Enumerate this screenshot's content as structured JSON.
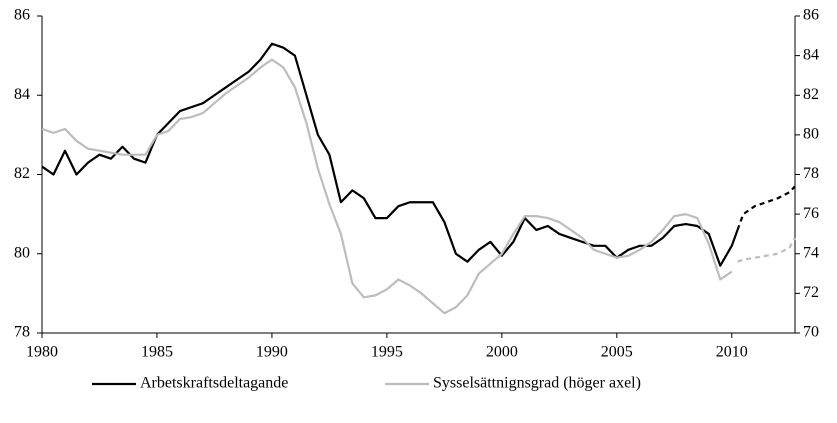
{
  "chart_data": {
    "type": "line",
    "x": [
      1980,
      1980.5,
      1981,
      1981.5,
      1982,
      1982.5,
      1983,
      1983.5,
      1984,
      1984.5,
      1985,
      1985.5,
      1986,
      1986.5,
      1987,
      1987.5,
      1988,
      1988.5,
      1989,
      1989.5,
      1990,
      1990.5,
      1991,
      1991.5,
      1992,
      1992.5,
      1993,
      1993.5,
      1994,
      1994.5,
      1995,
      1995.5,
      1996,
      1996.5,
      1997,
      1997.5,
      1998,
      1998.5,
      1999,
      1999.5,
      2000,
      2000.5,
      2001,
      2001.5,
      2002,
      2002.5,
      2003,
      2003.5,
      2004,
      2004.5,
      2005,
      2005.5,
      2006,
      2006.5,
      2007,
      2007.5,
      2008,
      2008.5,
      2009,
      2009.5,
      2010,
      2010.25,
      2010.5,
      2011,
      2011.5,
      2012,
      2012.5,
      2012.75
    ],
    "series": [
      {
        "name": "Arbetskraftsdeltagande",
        "color": "#000000",
        "axis": "y",
        "values": [
          82.2,
          82.0,
          82.6,
          82.0,
          82.3,
          82.5,
          82.4,
          82.7,
          82.4,
          82.3,
          83.0,
          83.3,
          83.6,
          83.7,
          83.8,
          84.0,
          84.2,
          84.4,
          84.6,
          84.9,
          85.3,
          85.2,
          85.0,
          84.0,
          83.0,
          82.5,
          81.3,
          81.6,
          81.4,
          80.9,
          80.9,
          81.2,
          81.3,
          81.3,
          81.3,
          80.8,
          80.0,
          79.8,
          80.1,
          80.3,
          79.95,
          80.3,
          80.9,
          80.6,
          80.7,
          80.5,
          80.4,
          80.3,
          80.2,
          80.2,
          79.9,
          80.1,
          80.2,
          80.2,
          80.4,
          80.7,
          80.75,
          80.7,
          80.5,
          79.7,
          80.2,
          80.6,
          null,
          null,
          null,
          null,
          null,
          null
        ],
        "forecast_values": [
          null,
          null,
          null,
          null,
          null,
          null,
          null,
          null,
          null,
          null,
          null,
          null,
          null,
          null,
          null,
          null,
          null,
          null,
          null,
          null,
          null,
          null,
          null,
          null,
          null,
          null,
          null,
          null,
          null,
          null,
          null,
          null,
          null,
          null,
          null,
          null,
          null,
          null,
          null,
          null,
          null,
          null,
          null,
          null,
          null,
          null,
          null,
          null,
          null,
          null,
          null,
          null,
          null,
          null,
          null,
          null,
          null,
          null,
          null,
          null,
          null,
          80.6,
          81.0,
          81.2,
          81.3,
          81.4,
          81.55,
          81.7
        ]
      },
      {
        "name": "Sysselsättnignsgrad (höger axel)",
        "color": "#bdbdbd",
        "axis": "y2",
        "values": [
          80.3,
          80.1,
          80.3,
          79.7,
          79.3,
          79.2,
          79.1,
          79.0,
          79.0,
          79.0,
          80.0,
          80.2,
          80.8,
          80.9,
          81.1,
          81.6,
          82.1,
          82.5,
          82.9,
          83.4,
          83.8,
          83.4,
          82.4,
          80.6,
          78.3,
          76.5,
          75.0,
          72.5,
          71.8,
          71.9,
          72.2,
          72.7,
          72.4,
          72.0,
          71.5,
          71.0,
          71.3,
          71.9,
          73.0,
          73.5,
          74.0,
          75.0,
          75.9,
          75.9,
          75.8,
          75.6,
          75.2,
          74.8,
          74.2,
          74.0,
          73.8,
          73.9,
          74.2,
          74.6,
          75.2,
          75.9,
          76.0,
          75.8,
          74.5,
          72.7,
          73.1,
          null,
          null,
          null,
          null,
          null,
          null,
          null
        ],
        "forecast_values": [
          null,
          null,
          null,
          null,
          null,
          null,
          null,
          null,
          null,
          null,
          null,
          null,
          null,
          null,
          null,
          null,
          null,
          null,
          null,
          null,
          null,
          null,
          null,
          null,
          null,
          null,
          null,
          null,
          null,
          null,
          null,
          null,
          null,
          null,
          null,
          null,
          null,
          null,
          null,
          null,
          null,
          null,
          null,
          null,
          null,
          null,
          null,
          null,
          null,
          null,
          null,
          null,
          null,
          null,
          null,
          null,
          null,
          null,
          null,
          null,
          null,
          73.6,
          73.7,
          73.8,
          73.9,
          74.0,
          74.3,
          74.8
        ]
      }
    ],
    "xlim": [
      1980,
      2012.75
    ],
    "xticks": [
      1980,
      1985,
      1990,
      1995,
      2000,
      2005,
      2010
    ],
    "ylim": [
      78,
      86
    ],
    "yticks": [
      78,
      80,
      82,
      84,
      86
    ],
    "y2lim": [
      70,
      86
    ],
    "y2ticks": [
      70,
      72,
      74,
      76,
      78,
      80,
      82,
      84,
      86
    ],
    "legend": "bottom"
  }
}
